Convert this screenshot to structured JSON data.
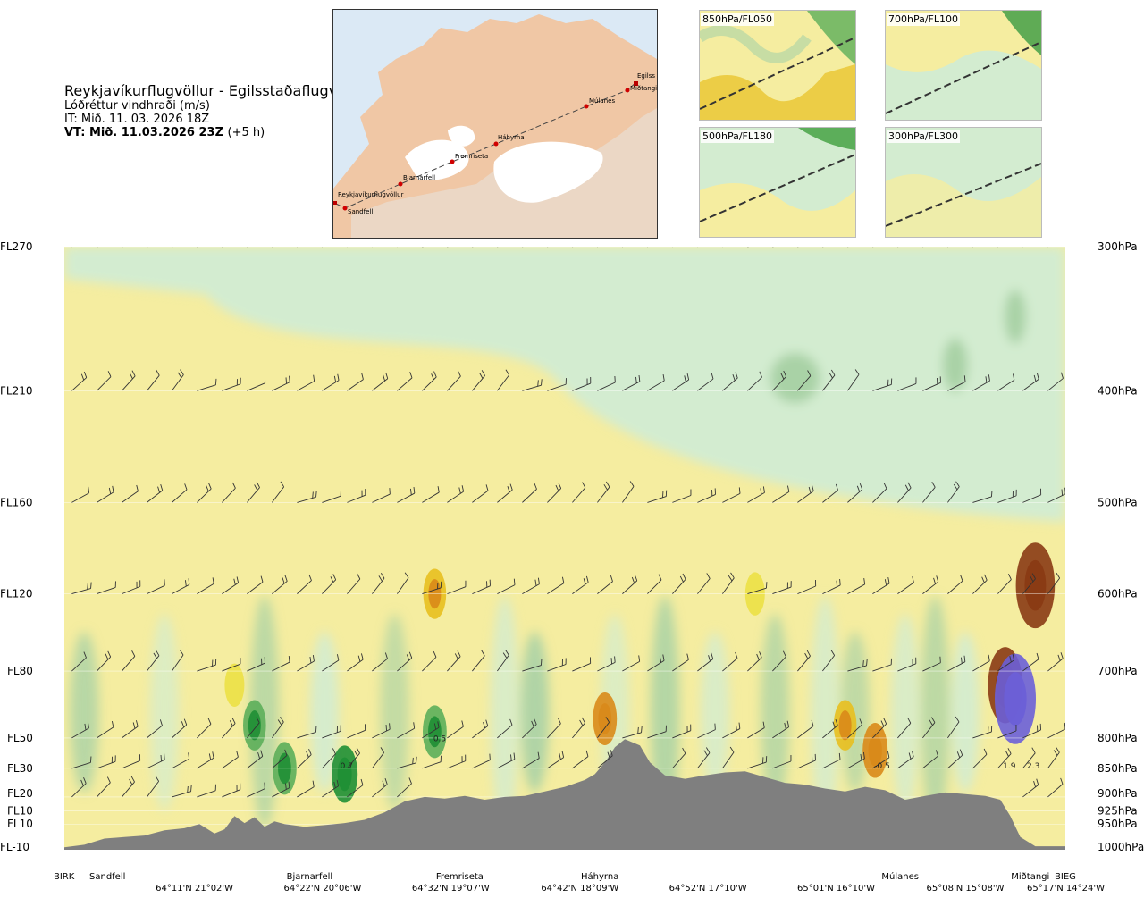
{
  "header": {
    "route": "Reykjavíkurflugvöllur - Egilsstaðaflugvöllur",
    "subtitle": "Lóðréttur vindhraði (m/s)",
    "issue_time": "IT: Mið. 11. 03. 2026 18Z",
    "valid_time": "VT: Mið. 11.03.2026 23Z",
    "lead": "(+5 h)"
  },
  "map": {
    "waypoints": [
      "Reykjavíkurflugvöllur",
      "Sandfell",
      "Bjarnarfell",
      "Fremriseta",
      "Háhyrna",
      "Múlanes",
      "Miðtangi",
      "Egilss"
    ]
  },
  "thumbnails": [
    {
      "label": "850hPa/FL050"
    },
    {
      "label": "700hPa/FL100"
    },
    {
      "label": "500hPa/FL180"
    },
    {
      "label": "300hPa/FL300"
    }
  ],
  "colors": {
    "terrain": "#7f7f7f",
    "barb": "#333333",
    "neutral_light": "#ffffdd",
    "up_weak": "#f5eda0",
    "up_mod": "#ece045",
    "up_strong": "#e8bf1f",
    "up_vstrong": "#d98a1a",
    "up_extreme": "#8a3a14",
    "down_weak": "#d3ecd0",
    "down_mod": "#a9d2a6",
    "down_strong": "#5cae5a",
    "down_vstrong": "#1f8f35",
    "down_extreme": "#6b5fd8"
  },
  "chart_data": {
    "type": "heatmap",
    "title": "Lóðréttur vindhraði (m/s)",
    "y_levels_left": [
      "FL270",
      "FL210",
      "FL160",
      "FL120",
      "FL80",
      "FL50",
      "FL30",
      "FL20",
      "FL10",
      "FL10",
      "FL-10"
    ],
    "y_levels_right": [
      "300hPa",
      "400hPa",
      "500hPa",
      "600hPa",
      "700hPa",
      "800hPa",
      "850hPa",
      "900hPa",
      "925hPa",
      "950hPa",
      "1000hPa"
    ],
    "pressure_values": [
      300,
      400,
      500,
      600,
      700,
      800,
      850,
      900,
      925,
      950,
      1000
    ],
    "x_points": [
      "BIRK",
      "Sandfell",
      "Bjarnarfell",
      "Fremriseta",
      "Háhyrna",
      "Múlanes",
      "Miðtangi",
      "BIEG"
    ],
    "x_points_pos": [
      0,
      0.03,
      0.245,
      0.395,
      0.535,
      0.835,
      0.965,
      1.0
    ],
    "x_coords": [
      "64°11'N 21°02'W",
      "64°22'N 20°06'W",
      "64°32'N 19°07'W",
      "64°42'N 18°09'W",
      "64°52'N 17°10'W",
      "65°01'N 16°10'W",
      "65°08'N 15°08'W",
      "65°17'N 14°24'W"
    ],
    "x_coords_pos": [
      0.13,
      0.258,
      0.386,
      0.515,
      0.643,
      0.771,
      0.9,
      1.0
    ],
    "annotations": [
      {
        "text": "0.5",
        "x": 0.375,
        "p": 805
      },
      {
        "text": "0.7",
        "x": 0.282,
        "p": 850
      },
      {
        "text": "-0.5",
        "x": 0.817,
        "p": 850
      },
      {
        "text": "1.9",
        "x": 0.944,
        "p": 850
      },
      {
        "text": "2.3",
        "x": 0.968,
        "p": 850
      }
    ],
    "terrain_profile": [
      [
        0,
        995
      ],
      [
        0.02,
        990
      ],
      [
        0.04,
        978
      ],
      [
        0.06,
        975
      ],
      [
        0.08,
        972
      ],
      [
        0.1,
        962
      ],
      [
        0.12,
        958
      ],
      [
        0.135,
        950
      ],
      [
        0.15,
        968
      ],
      [
        0.16,
        960
      ],
      [
        0.17,
        935
      ],
      [
        0.18,
        948
      ],
      [
        0.19,
        937
      ],
      [
        0.2,
        955
      ],
      [
        0.21,
        945
      ],
      [
        0.22,
        950
      ],
      [
        0.24,
        955
      ],
      [
        0.26,
        952
      ],
      [
        0.28,
        948
      ],
      [
        0.3,
        942
      ],
      [
        0.32,
        928
      ],
      [
        0.34,
        908
      ],
      [
        0.36,
        900
      ],
      [
        0.38,
        903
      ],
      [
        0.4,
        898
      ],
      [
        0.42,
        905
      ],
      [
        0.44,
        900
      ],
      [
        0.46,
        898
      ],
      [
        0.48,
        890
      ],
      [
        0.5,
        882
      ],
      [
        0.52,
        870
      ],
      [
        0.53,
        860
      ],
      [
        0.54,
        840
      ],
      [
        0.55,
        815
      ],
      [
        0.56,
        802
      ],
      [
        0.575,
        812
      ],
      [
        0.585,
        840
      ],
      [
        0.6,
        862
      ],
      [
        0.62,
        868
      ],
      [
        0.64,
        862
      ],
      [
        0.66,
        857
      ],
      [
        0.68,
        855
      ],
      [
        0.7,
        865
      ],
      [
        0.72,
        875
      ],
      [
        0.74,
        878
      ],
      [
        0.76,
        885
      ],
      [
        0.78,
        890
      ],
      [
        0.8,
        882
      ],
      [
        0.82,
        888
      ],
      [
        0.84,
        905
      ],
      [
        0.86,
        898
      ],
      [
        0.88,
        892
      ],
      [
        0.9,
        895
      ],
      [
        0.92,
        898
      ],
      [
        0.935,
        905
      ],
      [
        0.945,
        935
      ],
      [
        0.955,
        975
      ],
      [
        0.97,
        993
      ],
      [
        1.0,
        993
      ]
    ],
    "vertical_velocity_cells": [
      {
        "x": 0.17,
        "p": 720,
        "v": 0.5
      },
      {
        "x": 0.19,
        "p": 780,
        "v": -0.8
      },
      {
        "x": 0.22,
        "p": 850,
        "v": -0.9
      },
      {
        "x": 0.28,
        "p": 860,
        "v": -1.1
      },
      {
        "x": 0.37,
        "p": 790,
        "v": -0.9
      },
      {
        "x": 0.37,
        "p": 600,
        "v": 0.8
      },
      {
        "x": 0.54,
        "p": 770,
        "v": 0.9
      },
      {
        "x": 0.69,
        "p": 600,
        "v": 0.5
      },
      {
        "x": 0.78,
        "p": 780,
        "v": 0.8
      },
      {
        "x": 0.81,
        "p": 820,
        "v": 1.0
      },
      {
        "x": 0.94,
        "p": 720,
        "v": 1.9
      },
      {
        "x": 0.97,
        "p": 590,
        "v": 2.3
      },
      {
        "x": 0.95,
        "p": 740,
        "v": -2.5
      }
    ],
    "wind_barb_rows_hpa": [
      300,
      400,
      500,
      600,
      700,
      800,
      850,
      900
    ]
  }
}
